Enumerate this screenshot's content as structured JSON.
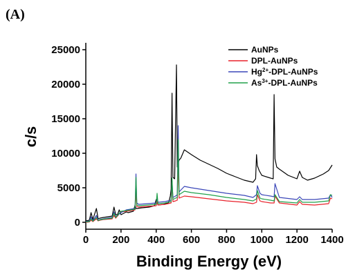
{
  "chart_data": {
    "type": "line",
    "panel_label": "(A)",
    "title": "",
    "xlabel": "Binding Energy (eV)",
    "ylabel": "c/s",
    "xlim": [
      0,
      1400
    ],
    "ylim": [
      -1000,
      26000
    ],
    "xticks": [
      0,
      200,
      400,
      600,
      800,
      1000,
      1200,
      1400
    ],
    "yticks": [
      0,
      5000,
      10000,
      15000,
      20000,
      25000
    ],
    "grid": false,
    "legend_position": "top-right",
    "series": [
      {
        "name": "AuNPs",
        "legend": {
          "base": "AuNPs",
          "sup": "",
          "rest": ""
        },
        "color": "#000000",
        "x": [
          0,
          20,
          30,
          40,
          60,
          70,
          80,
          100,
          150,
          160,
          170,
          180,
          190,
          200,
          230,
          240,
          270,
          280,
          285,
          290,
          320,
          360,
          390,
          400,
          410,
          440,
          470,
          480,
          485,
          490,
          495,
          505,
          515,
          520,
          530,
          540,
          560,
          600,
          650,
          700,
          750,
          800,
          850,
          900,
          950,
          965,
          970,
          975,
          985,
          1000,
          1050,
          1065,
          1070,
          1075,
          1085,
          1100,
          1150,
          1200,
          1215,
          1230,
          1260,
          1300,
          1350,
          1380,
          1400
        ],
        "y": [
          200,
          300,
          1400,
          400,
          2000,
          500,
          600,
          700,
          900,
          2200,
          1100,
          1100,
          1800,
          1100,
          1500,
          1400,
          1600,
          2500,
          2000,
          2000,
          2100,
          2200,
          2400,
          3300,
          2500,
          2600,
          2800,
          3800,
          4800,
          18700,
          6500,
          6300,
          22800,
          8000,
          9000,
          9300,
          10500,
          9800,
          9000,
          8400,
          7800,
          7100,
          6600,
          6100,
          5800,
          6300,
          9800,
          8200,
          7500,
          6800,
          6400,
          6300,
          18500,
          9200,
          8000,
          7700,
          6800,
          6300,
          7400,
          6500,
          6100,
          6400,
          7000,
          7500,
          8300
        ]
      },
      {
        "name": "DPL-AuNPs",
        "legend": {
          "base": "DPL-AuNPs",
          "sup": "",
          "rest": ""
        },
        "color": "#e8202a",
        "x": [
          0,
          20,
          30,
          40,
          60,
          70,
          80,
          100,
          150,
          160,
          170,
          200,
          230,
          280,
          285,
          290,
          300,
          350,
          400,
          405,
          410,
          450,
          485,
          490,
          495,
          510,
          520,
          525,
          530,
          560,
          600,
          700,
          800,
          900,
          950,
          970,
          975,
          990,
          1000,
          1050,
          1070,
          1075,
          1100,
          1200,
          1215,
          1230,
          1300,
          1380,
          1390,
          1400
        ],
        "y": [
          0,
          50,
          300,
          100,
          500,
          200,
          300,
          400,
          500,
          1000,
          600,
          1500,
          1600,
          1800,
          4500,
          2300,
          2200,
          2300,
          2400,
          3000,
          2500,
          2600,
          2800,
          5500,
          3000,
          3100,
          3200,
          9000,
          3500,
          3800,
          3700,
          3400,
          3100,
          2900,
          2700,
          2900,
          4000,
          3100,
          3000,
          2800,
          2800,
          3800,
          2800,
          2500,
          3000,
          2600,
          2500,
          2700,
          3500,
          3400
        ]
      },
      {
        "name": "Hg2+-DPL-AuNPs",
        "legend": {
          "base": "Hg",
          "sup": "2+",
          "rest": "-DPL-AuNPs"
        },
        "color": "#3a46b8",
        "x": [
          0,
          20,
          30,
          40,
          60,
          70,
          80,
          100,
          150,
          160,
          170,
          200,
          230,
          280,
          285,
          290,
          300,
          350,
          400,
          405,
          410,
          450,
          485,
          490,
          495,
          510,
          520,
          525,
          530,
          560,
          600,
          700,
          800,
          900,
          950,
          970,
          975,
          990,
          1000,
          1050,
          1070,
          1075,
          1100,
          1200,
          1215,
          1230,
          1300,
          1380,
          1390,
          1400
        ],
        "y": [
          100,
          150,
          800,
          200,
          1000,
          300,
          400,
          500,
          700,
          1500,
          800,
          1400,
          1800,
          2000,
          7000,
          2800,
          2600,
          2700,
          2800,
          3500,
          2900,
          3000,
          3200,
          6000,
          3600,
          3800,
          4000,
          14000,
          4400,
          5200,
          5000,
          4600,
          4200,
          3900,
          3600,
          4000,
          5300,
          4200,
          4000,
          3800,
          3700,
          5600,
          3600,
          3300,
          3700,
          3300,
          3300,
          3500,
          4000,
          3600
        ]
      },
      {
        "name": "As3+-DPL-AuNPs",
        "legend": {
          "base": "As",
          "sup": "3+",
          "rest": "-DPL-AuNPs"
        },
        "color": "#20a04a",
        "x": [
          0,
          20,
          30,
          40,
          60,
          70,
          80,
          100,
          150,
          160,
          170,
          200,
          230,
          280,
          285,
          290,
          300,
          350,
          400,
          405,
          410,
          450,
          485,
          490,
          495,
          510,
          520,
          525,
          530,
          560,
          600,
          700,
          800,
          900,
          950,
          970,
          975,
          990,
          1000,
          1050,
          1070,
          1075,
          1100,
          1200,
          1215,
          1230,
          1300,
          1380,
          1390,
          1400
        ],
        "y": [
          50,
          100,
          500,
          150,
          700,
          250,
          350,
          450,
          600,
          1300,
          700,
          1600,
          1700,
          1900,
          6500,
          2500,
          2400,
          2500,
          2600,
          4200,
          2700,
          2800,
          3000,
          6400,
          3300,
          3500,
          3600,
          12000,
          4000,
          4500,
          4300,
          4000,
          3600,
          3300,
          3100,
          3400,
          4600,
          3500,
          3400,
          3200,
          3100,
          4000,
          3000,
          2800,
          3300,
          2900,
          2900,
          3100,
          4000,
          3900
        ]
      }
    ]
  }
}
